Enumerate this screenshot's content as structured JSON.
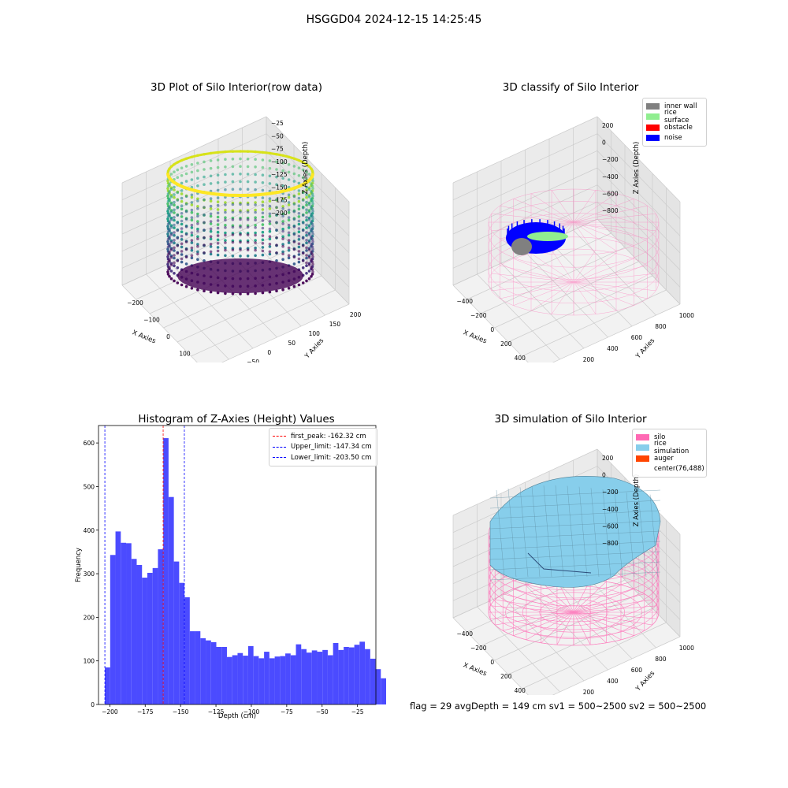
{
  "suptitle": "HSGGD04 2024-12-15 14:25:45",
  "footer_text": "flag = 29  avgDepth = 149 cm  sv1 = 500~2500  sv2 = 500~2500",
  "colors": {
    "inner_wall": "#808080",
    "rice_surface": "#90ee90",
    "obstacle": "#ff0000",
    "noise": "#0000ff",
    "silo": "#ff69b4",
    "rice_simulation": "#87ceeb",
    "auger": "#ff4500",
    "hist_bar": "#4b4bff",
    "first_peak_line": "#ff0000",
    "limit_lines": "#0000ff"
  },
  "chart_data": [
    {
      "type": "scatter",
      "subtype": "3d-scatter",
      "title": "3D Plot of Silo Interior(row data)",
      "xlabel": "X Axies",
      "ylabel": "Y Axies",
      "zlabel": "Z Axies (Depth)",
      "xticks": [
        "−200",
        "−100",
        "0",
        "100",
        "200"
      ],
      "yticks": [
        "−100",
        "−50",
        "0",
        "50",
        "100",
        "150",
        "200"
      ],
      "zticks": [
        "−25",
        "−50",
        "−75",
        "−100",
        "−125",
        "−150",
        "−175",
        "−200"
      ],
      "colormap": "viridis"
    },
    {
      "type": "scatter",
      "subtype": "3d-scatter",
      "title": "3D classify of Silo Interior",
      "xlabel": "X Axies",
      "ylabel": "Y Axies",
      "zlabel": "Z Axies (Depth)",
      "xticks": [
        "−400",
        "−200",
        "0",
        "200",
        "400",
        "600"
      ],
      "yticks": [
        "0",
        "200",
        "400",
        "600",
        "800",
        "1000"
      ],
      "zticks": [
        "200",
        "0",
        "−200",
        "−400",
        "−600",
        "−800"
      ],
      "legend": [
        "inner wall",
        "rice surface",
        "obstacle",
        "noise"
      ],
      "legend_position": "top-right"
    },
    {
      "type": "bar",
      "subtype": "histogram",
      "title": "Histogram of Z-Axies (Height) Values",
      "xlabel": "Depth (cm)",
      "ylabel": "Frequency",
      "xlim": [
        -208,
        -12
      ],
      "ylim": [
        0,
        640
      ],
      "xticks": [
        -200,
        -175,
        -150,
        -125,
        -100,
        -75,
        -50,
        -25
      ],
      "yticks": [
        0,
        100,
        200,
        300,
        400,
        500,
        600
      ],
      "bin_start": -203.5,
      "bin_width": 3.75,
      "values": [
        85,
        343,
        397,
        371,
        370,
        334,
        320,
        291,
        302,
        313,
        356,
        611,
        476,
        328,
        279,
        246,
        168,
        168,
        152,
        147,
        143,
        132,
        132,
        109,
        113,
        118,
        112,
        134,
        111,
        106,
        121,
        106,
        110,
        111,
        117,
        113,
        138,
        127,
        119,
        124,
        121,
        125,
        113,
        141,
        125,
        132,
        131,
        137,
        144,
        127,
        105,
        81,
        60
      ],
      "vlines": [
        {
          "label": "first_peak: -162.32 cm",
          "x": -162.32,
          "color": "#ff0000"
        },
        {
          "label": "Upper_limit: -147.34 cm",
          "x": -147.34,
          "color": "#0000ff"
        },
        {
          "label": "Lower_limit: -203.50 cm",
          "x": -203.5,
          "color": "#0000ff"
        }
      ],
      "legend_position": "top-right"
    },
    {
      "type": "area",
      "subtype": "3d-surface",
      "title": "3D simulation of Silo Interior",
      "xlabel": "X Axies",
      "ylabel": "Y Axies",
      "zlabel": "Z Axies (Depth)",
      "xticks": [
        "−400",
        "−200",
        "0",
        "200",
        "400",
        "600"
      ],
      "yticks": [
        "0",
        "200",
        "400",
        "600",
        "800",
        "1000"
      ],
      "zticks": [
        "200",
        "0",
        "−200",
        "−400",
        "−600",
        "−800"
      ],
      "legend": [
        "silo",
        "rice simulation",
        "auger",
        "center(76,488)"
      ],
      "legend_position": "top-right"
    }
  ]
}
